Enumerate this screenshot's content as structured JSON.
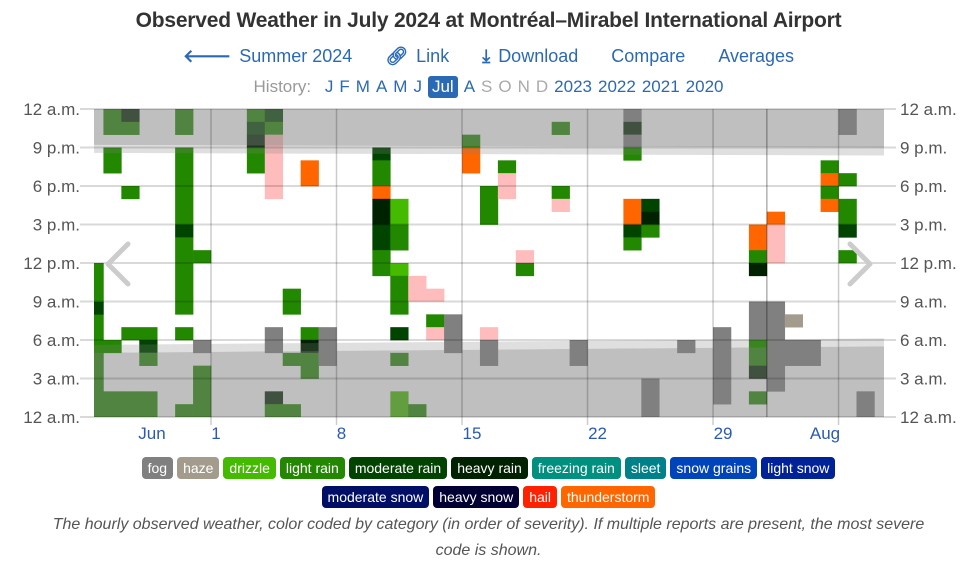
{
  "header": {
    "title": "Observed Weather in July 2024 at Montréal–Mirabel International Airport",
    "nav": [
      {
        "icon": "arrow-left-icon",
        "glyph": "🡐",
        "label": "Summer 2024"
      },
      {
        "icon": "link-icon",
        "glyph": "🔗",
        "label": "Link"
      },
      {
        "icon": "download-icon",
        "glyph": "⤓",
        "label": "Download"
      },
      {
        "icon": "",
        "glyph": "",
        "label": "Compare"
      },
      {
        "icon": "",
        "glyph": "",
        "label": "Averages"
      }
    ],
    "history_label": "History:",
    "months": [
      {
        "label": "J",
        "state": "on"
      },
      {
        "label": "F",
        "state": "on"
      },
      {
        "label": "M",
        "state": "on"
      },
      {
        "label": "A",
        "state": "on"
      },
      {
        "label": "M",
        "state": "on"
      },
      {
        "label": "J",
        "state": "on"
      },
      {
        "label": "Jul",
        "state": "cur"
      },
      {
        "label": "A",
        "state": "on"
      },
      {
        "label": "S",
        "state": "off"
      },
      {
        "label": "O",
        "state": "off"
      },
      {
        "label": "N",
        "state": "off"
      },
      {
        "label": "D",
        "state": "off"
      }
    ],
    "years": [
      "2023",
      "2022",
      "2021",
      "2020"
    ]
  },
  "chart_data": {
    "type": "heatmap",
    "title": "Observed Weather in July 2024 at Montréal–Mirabel International Airport",
    "x_axis": {
      "unit": "day",
      "range": [
        "Jun 24",
        "Aug 6"
      ],
      "tick_labels": [
        "Jun",
        "1",
        "8",
        "15",
        "22",
        "29",
        "Aug"
      ]
    },
    "y_axis": {
      "unit": "hour",
      "range": [
        0,
        24
      ],
      "tick_labels": [
        "12 a.m.",
        "3 a.m.",
        "6 a.m.",
        "9 a.m.",
        "12 p.m.",
        "3 p.m.",
        "6 p.m.",
        "9 p.m.",
        "12 a.m."
      ]
    },
    "grid": true,
    "night_shading": {
      "evening_start_hour": [
        21.2,
        21.0
      ],
      "morning_end_hour": [
        5.0,
        5.5
      ]
    },
    "categories": [
      {
        "key": "fog",
        "label": "fog",
        "color": "#808080"
      },
      {
        "key": "haze",
        "label": "haze",
        "color": "#a39b8c"
      },
      {
        "key": "drizzle",
        "label": "drizzle",
        "color": "#44bb00"
      },
      {
        "key": "light-rain",
        "label": "light rain",
        "color": "#228800"
      },
      {
        "key": "moderate-rain",
        "label": "moderate rain",
        "color": "#004400"
      },
      {
        "key": "heavy-rain",
        "label": "heavy rain",
        "color": "#002200"
      },
      {
        "key": "freezing-rain",
        "label": "freezing rain",
        "color": "#009080"
      },
      {
        "key": "sleet",
        "label": "sleet",
        "color": "#008088"
      },
      {
        "key": "snow-grains",
        "label": "snow grains",
        "color": "#0044bb"
      },
      {
        "key": "light-snow",
        "label": "light snow",
        "color": "#002299"
      },
      {
        "key": "moderate-snow",
        "label": "moderate snow",
        "color": "#000f66"
      },
      {
        "key": "heavy-snow",
        "label": "heavy snow",
        "color": "#000033"
      },
      {
        "key": "hail",
        "label": "hail",
        "color": "#ff2200"
      },
      {
        "key": "thunderstorm",
        "label": "thunderstorm",
        "color": "#ff6600"
      },
      {
        "key": "vicinity",
        "label": "",
        "color": "#ffbcbc"
      }
    ],
    "legend_rows": [
      [
        "fog",
        "haze",
        "drizzle",
        "light-rain",
        "moderate-rain",
        "heavy-rain",
        "freezing-rain",
        "sleet",
        "snow-grains",
        "light-snow"
      ],
      [
        "moderate-snow",
        "heavy-snow",
        "hail",
        "thunderstorm"
      ]
    ],
    "cells_note": "each entry: [day offset from Jul 1 (0 = Jul 1), hour start, hour end, category]",
    "cells": [
      [
        -7,
        0,
        8,
        "light-rain"
      ],
      [
        -7,
        8,
        9,
        "moderate-rain"
      ],
      [
        -7,
        9,
        12,
        "light-rain"
      ],
      [
        -6,
        22,
        24,
        "light-rain"
      ],
      [
        -6,
        19,
        21,
        "light-rain"
      ],
      [
        -6,
        5,
        6,
        "light-rain"
      ],
      [
        -6,
        0,
        2,
        "light-rain"
      ],
      [
        -5,
        23,
        24,
        "heavy-rain"
      ],
      [
        -5,
        22,
        23,
        "light-rain"
      ],
      [
        -5,
        17,
        18,
        "light-rain"
      ],
      [
        -5,
        6,
        7,
        "light-rain"
      ],
      [
        -5,
        0,
        2,
        "light-rain"
      ],
      [
        -4,
        6,
        7,
        "light-rain"
      ],
      [
        -4,
        5,
        6,
        "moderate-rain"
      ],
      [
        -4,
        4,
        5,
        "light-rain"
      ],
      [
        -4,
        0,
        2,
        "light-rain"
      ],
      [
        -2,
        22,
        24,
        "light-rain"
      ],
      [
        -2,
        15,
        21,
        "light-rain"
      ],
      [
        -2,
        14,
        15,
        "moderate-rain"
      ],
      [
        -2,
        8,
        14,
        "light-rain"
      ],
      [
        -2,
        6,
        7,
        "light-rain"
      ],
      [
        -2,
        0,
        1,
        "light-rain"
      ],
      [
        -1,
        12,
        13,
        "light-rain"
      ],
      [
        -1,
        5,
        6,
        "fog"
      ],
      [
        -1,
        0,
        4,
        "light-rain"
      ],
      [
        2,
        23,
        24,
        "light-rain"
      ],
      [
        2,
        22,
        23,
        "moderate-rain"
      ],
      [
        2,
        21,
        22,
        "heavy-rain"
      ],
      [
        2,
        19,
        21,
        "light-rain"
      ],
      [
        3,
        23,
        24,
        "moderate-rain"
      ],
      [
        3,
        22,
        23,
        "light-rain"
      ],
      [
        3,
        17,
        22,
        "vicinity"
      ],
      [
        3,
        5,
        7,
        "fog"
      ],
      [
        3,
        1,
        2,
        "heavy-rain"
      ],
      [
        3,
        0,
        1,
        "light-rain"
      ],
      [
        4,
        8,
        10,
        "light-rain"
      ],
      [
        4,
        4,
        5,
        "light-rain"
      ],
      [
        4,
        0,
        1,
        "light-rain"
      ],
      [
        5,
        18,
        20,
        "thunderstorm"
      ],
      [
        5,
        6,
        7,
        "light-rain"
      ],
      [
        5,
        5,
        6,
        "heavy-rain"
      ],
      [
        5,
        3,
        5,
        "light-rain"
      ],
      [
        6,
        4,
        7,
        "fog"
      ],
      [
        9,
        20,
        21,
        "moderate-rain"
      ],
      [
        9,
        18,
        20,
        "light-rain"
      ],
      [
        9,
        17,
        18,
        "thunderstorm"
      ],
      [
        9,
        15,
        17,
        "heavy-rain"
      ],
      [
        9,
        13,
        15,
        "moderate-rain"
      ],
      [
        9,
        11,
        13,
        "light-rain"
      ],
      [
        10,
        15,
        17,
        "drizzle"
      ],
      [
        10,
        13,
        15,
        "light-rain"
      ],
      [
        10,
        11,
        12,
        "drizzle"
      ],
      [
        10,
        8,
        11,
        "light-rain"
      ],
      [
        10,
        6,
        7,
        "moderate-rain"
      ],
      [
        10,
        4,
        5,
        "light-rain"
      ],
      [
        10,
        0,
        2,
        "drizzle"
      ],
      [
        11,
        9,
        11,
        "vicinity"
      ],
      [
        11,
        0,
        1,
        "light-rain"
      ],
      [
        12,
        9,
        10,
        "vicinity"
      ],
      [
        12,
        7,
        8,
        "light-rain"
      ],
      [
        12,
        6,
        7,
        "vicinity"
      ],
      [
        13,
        5,
        8,
        "fog"
      ],
      [
        14,
        21,
        22,
        "light-rain"
      ],
      [
        14,
        19,
        21,
        "thunderstorm"
      ],
      [
        15,
        15,
        18,
        "light-rain"
      ],
      [
        15,
        6,
        7,
        "vicinity"
      ],
      [
        15,
        4,
        6,
        "fog"
      ],
      [
        16,
        19,
        20,
        "light-rain"
      ],
      [
        16,
        17,
        19,
        "vicinity"
      ],
      [
        17,
        12,
        13,
        "vicinity"
      ],
      [
        17,
        11,
        12,
        "light-rain"
      ],
      [
        19,
        22,
        23,
        "light-rain"
      ],
      [
        19,
        17,
        18,
        "light-rain"
      ],
      [
        19,
        16,
        17,
        "vicinity"
      ],
      [
        20,
        4,
        6,
        "fog"
      ],
      [
        23,
        23,
        24,
        "fog"
      ],
      [
        23,
        22,
        23,
        "heavy-rain"
      ],
      [
        23,
        21,
        22,
        "fog"
      ],
      [
        23,
        20,
        21,
        "light-rain"
      ],
      [
        23,
        15,
        17,
        "thunderstorm"
      ],
      [
        23,
        14,
        15,
        "moderate-rain"
      ],
      [
        23,
        13,
        14,
        "light-rain"
      ],
      [
        24,
        16,
        17,
        "moderate-rain"
      ],
      [
        24,
        15,
        16,
        "heavy-rain"
      ],
      [
        24,
        14,
        15,
        "light-rain"
      ],
      [
        24,
        0,
        3,
        "fog"
      ],
      [
        26,
        5,
        6,
        "fog"
      ],
      [
        28,
        1,
        7,
        "fog"
      ],
      [
        30,
        13,
        15,
        "thunderstorm"
      ],
      [
        30,
        12,
        13,
        "light-rain"
      ],
      [
        30,
        11,
        12,
        "heavy-rain"
      ],
      [
        30,
        6,
        9,
        "fog"
      ],
      [
        30,
        4,
        6,
        "light-rain"
      ],
      [
        30,
        3,
        4,
        "heavy-rain"
      ],
      [
        30,
        1,
        2,
        "light-rain"
      ],
      [
        31,
        15,
        16,
        "thunderstorm"
      ],
      [
        31,
        12,
        15,
        "vicinity"
      ],
      [
        31,
        2,
        9,
        "fog"
      ],
      [
        32,
        7,
        8,
        "haze"
      ],
      [
        32,
        4,
        6,
        "fog"
      ],
      [
        33,
        4,
        6,
        "fog"
      ],
      [
        34,
        19,
        20,
        "light-rain"
      ],
      [
        34,
        18,
        19,
        "thunderstorm"
      ],
      [
        34,
        17,
        18,
        "light-rain"
      ],
      [
        34,
        16,
        17,
        "thunderstorm"
      ],
      [
        35,
        22,
        24,
        "fog"
      ],
      [
        35,
        18,
        19,
        "light-rain"
      ],
      [
        35,
        15,
        17,
        "light-rain"
      ],
      [
        35,
        14,
        15,
        "moderate-rain"
      ],
      [
        35,
        12,
        13,
        "light-rain"
      ],
      [
        36,
        0,
        2,
        "fog"
      ]
    ]
  },
  "caption": "The hourly observed weather, color coded by category (in order of severity). If multiple reports are present, the most severe code is shown."
}
